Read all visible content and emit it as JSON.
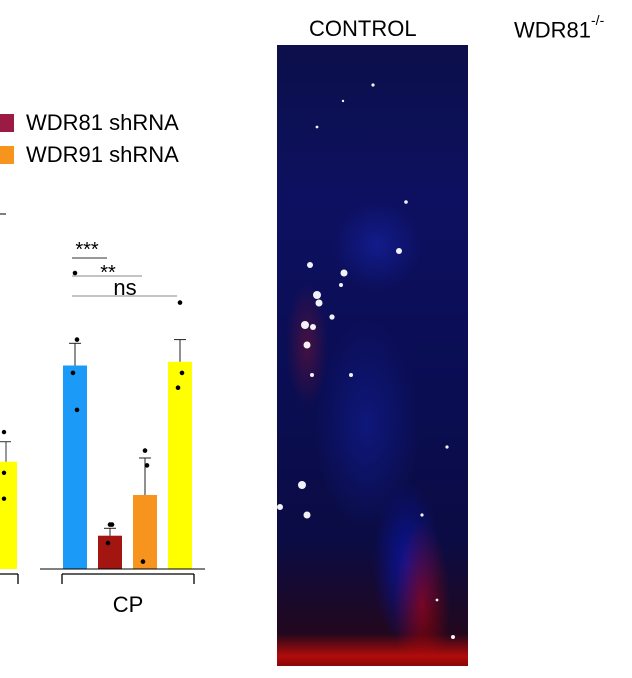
{
  "legend": {
    "items": [
      {
        "label": "WDR81 shRNA",
        "color": "#9b1b45"
      },
      {
        "label": "WDR91 shRNA",
        "color": "#f7941d"
      }
    ]
  },
  "panels": {
    "control_title": "CONTROL",
    "knockout_title": "WDR81",
    "knockout_superscript": "-/-"
  },
  "chart_data": {
    "type": "bar",
    "group_label": "CP",
    "partial_bar_left": {
      "value": 0.29,
      "color": "#ffff00"
    },
    "bars": [
      {
        "color": "#1b9af7",
        "value": 0.55,
        "error": 0.06,
        "points": [
          0.8,
          0.62,
          0.53,
          0.43
        ]
      },
      {
        "color": "#a31510",
        "value": 0.09,
        "error": 0.02,
        "points": [
          0.12,
          0.12,
          0.07
        ]
      },
      {
        "color": "#f7941d",
        "value": 0.2,
        "error": 0.1,
        "points": [
          0.32,
          0.28,
          0.02
        ]
      },
      {
        "color": "#ffff00",
        "value": 0.56,
        "error": 0.06,
        "points": [
          0.72,
          0.53,
          0.49
        ]
      }
    ],
    "significance": [
      {
        "label": "***",
        "from": 0,
        "to": 1
      },
      {
        "label": "**",
        "from": 0,
        "to": 2
      },
      {
        "label": "ns",
        "from": 0,
        "to": 3
      }
    ]
  }
}
